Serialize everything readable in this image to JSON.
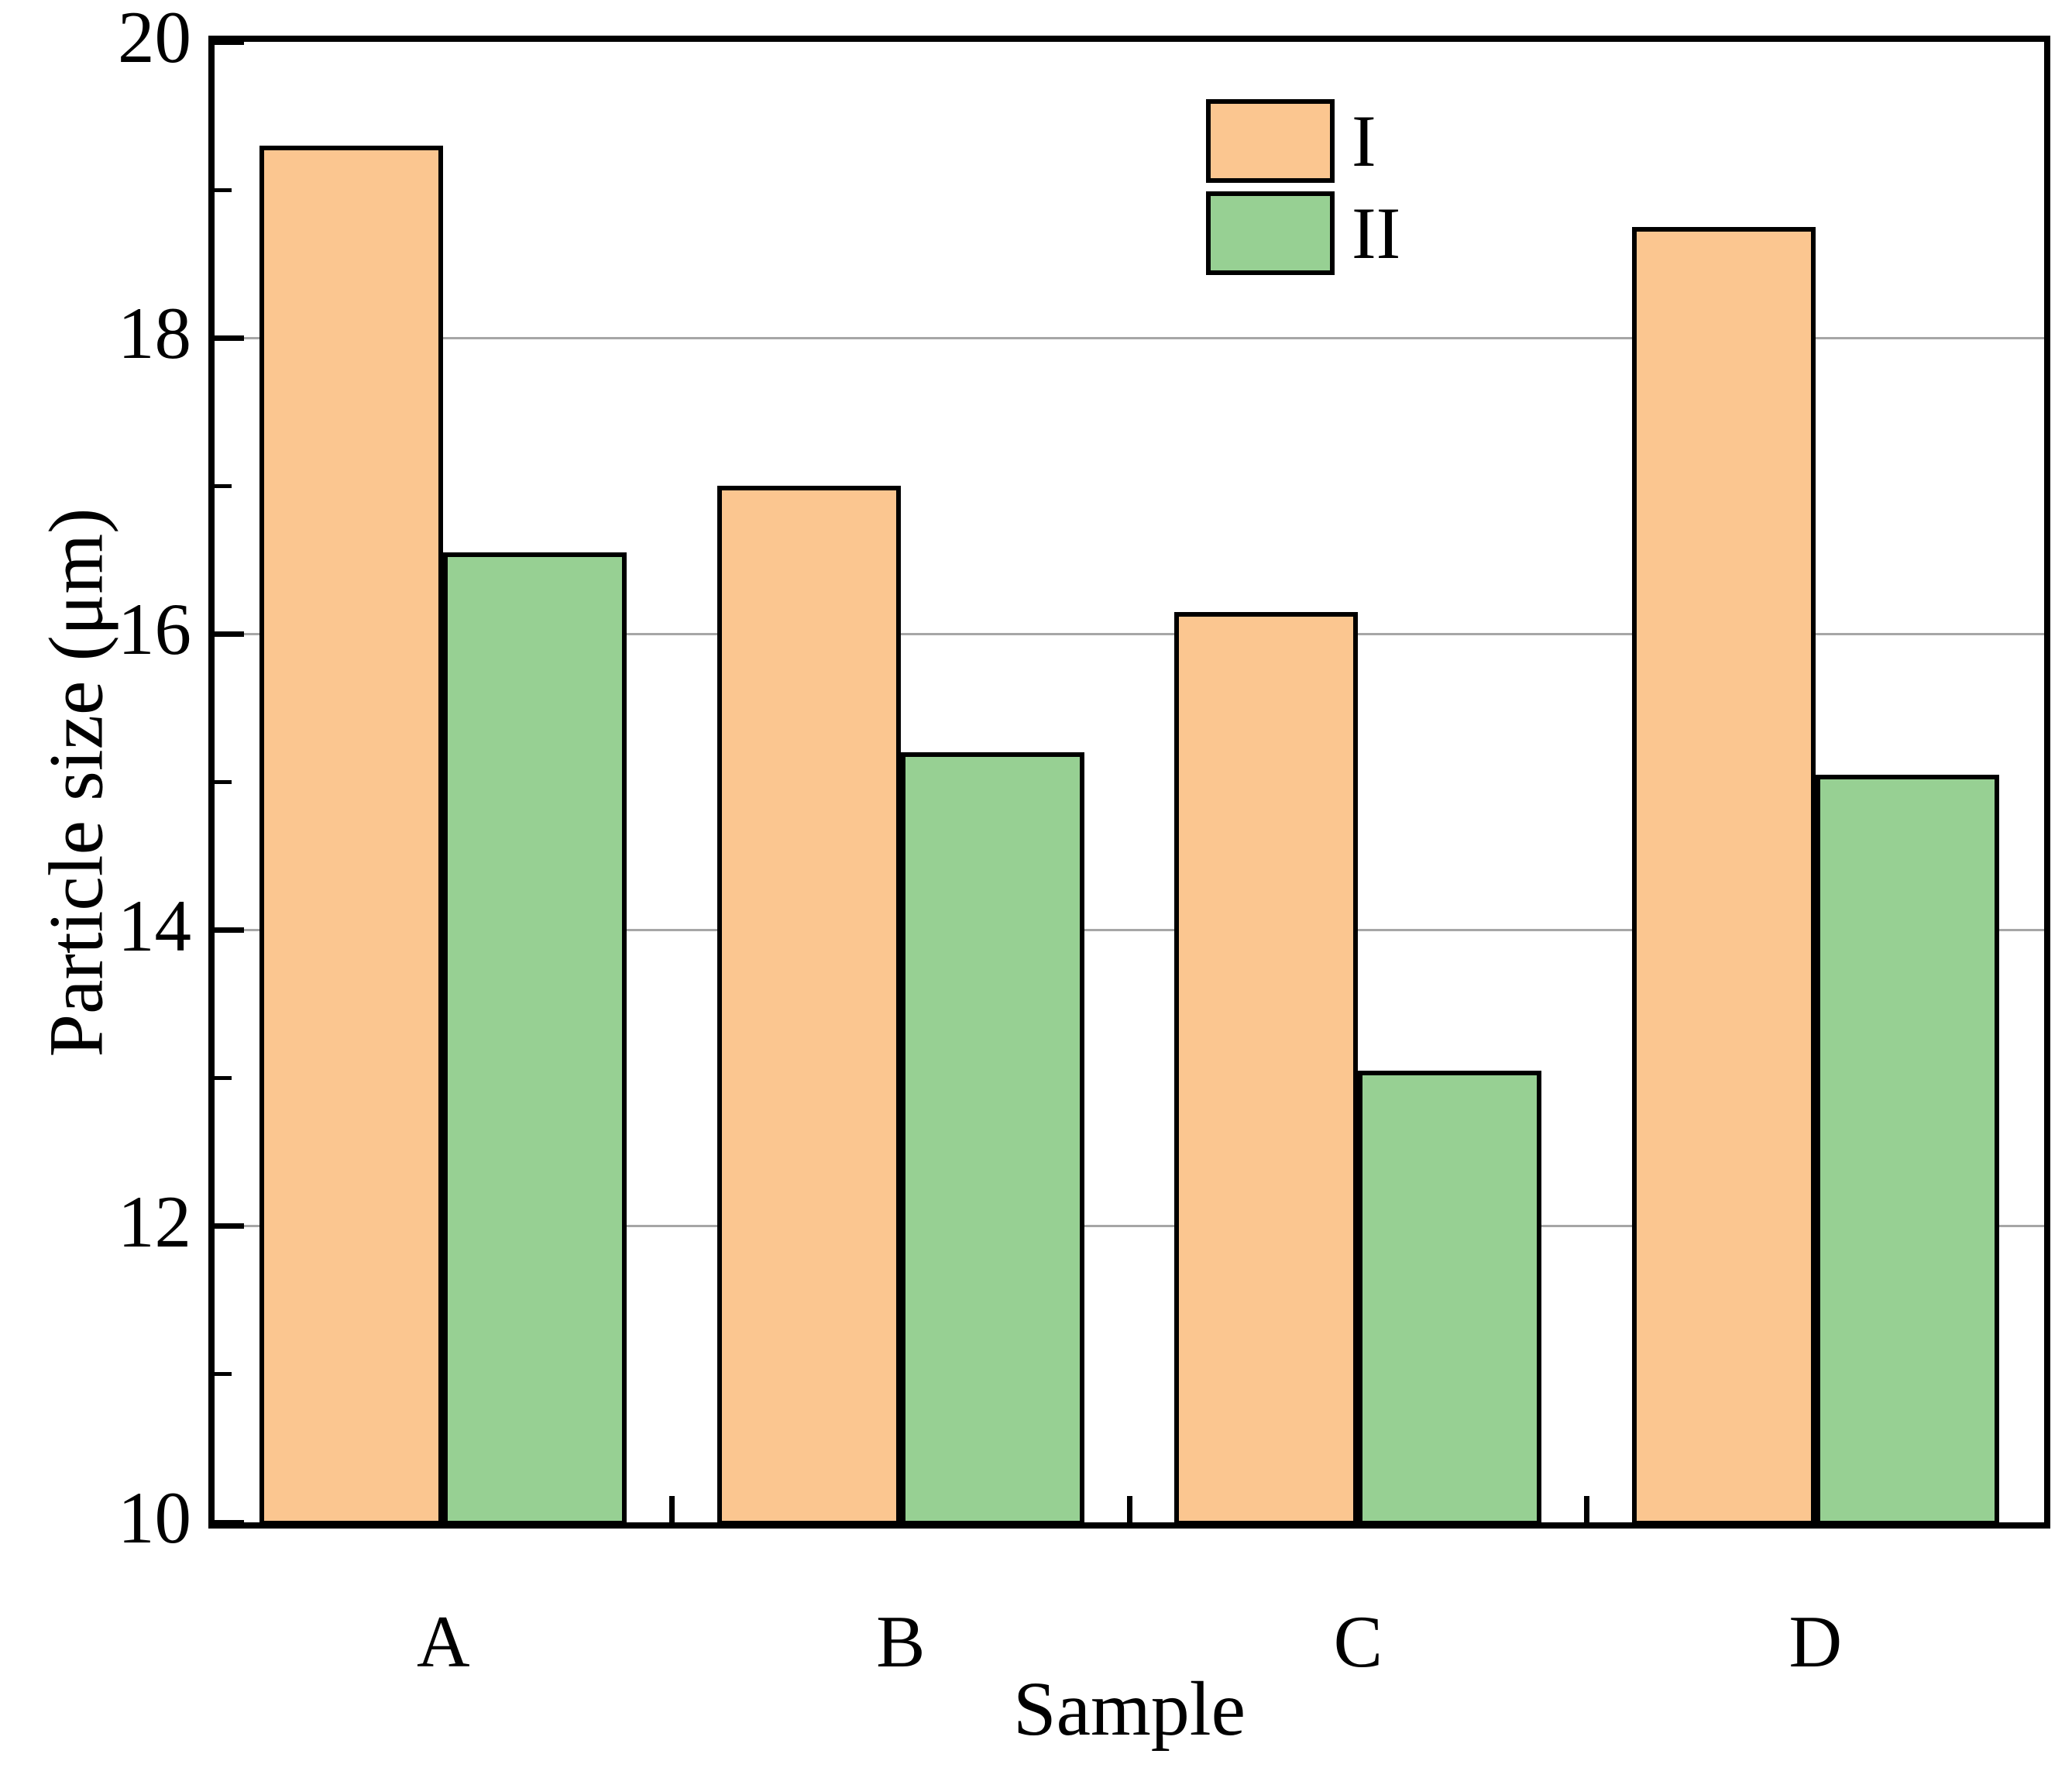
{
  "figure": {
    "background": "#ffffff",
    "frame_color": "#000000"
  },
  "chart_data": {
    "type": "bar",
    "title": "",
    "xlabel": "Sample",
    "ylabel": "Particle size (μm)",
    "categories": [
      "A",
      "B",
      "C",
      "D"
    ],
    "series": [
      {
        "name": "I",
        "color": "#FBC690",
        "values": [
          19.3,
          17.0,
          16.15,
          18.75
        ]
      },
      {
        "name": "II",
        "color": "#97D093",
        "values": [
          16.55,
          15.2,
          13.05,
          15.05
        ]
      }
    ],
    "ylim": [
      10,
      20
    ],
    "yticks_major": [
      10,
      12,
      14,
      16,
      18,
      20
    ],
    "yticks_minor": [
      11,
      13,
      15,
      17,
      19
    ],
    "gridlines_y": [
      12,
      14,
      16,
      18
    ],
    "grid": "horizontal gridlines at major ticks only",
    "grid_color": "#a6a6a6",
    "bar_edge_color": "#000000",
    "legend_position": "upper right inside plot",
    "legend_entries": [
      "I",
      "II"
    ]
  }
}
